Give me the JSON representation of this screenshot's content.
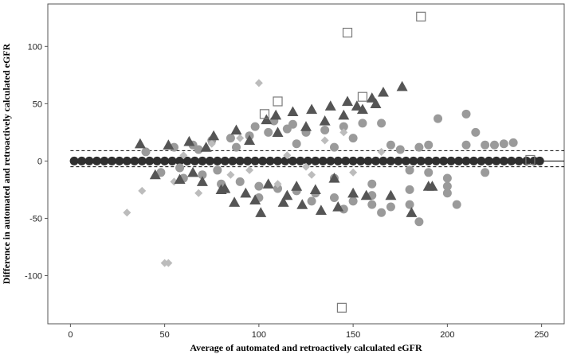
{
  "chart_data": {
    "type": "scatter",
    "title": "",
    "xlabel": "Average of automated and retroactively calculated eGFR",
    "ylabel": "Difference in automated and retroactively calculated eGFR",
    "xlim": [
      -12,
      262
    ],
    "ylim": [
      -142,
      137
    ],
    "xticks": [
      0,
      50,
      100,
      150,
      200,
      250
    ],
    "yticks": [
      100,
      50,
      0,
      -50,
      -100
    ],
    "xtick_labels": [
      "0",
      "50",
      "100",
      "150",
      "200",
      "250"
    ],
    "ytick_labels": [
      "100",
      "50",
      "0",
      "-50",
      "-100"
    ],
    "reference_lines": [
      {
        "style": "solid",
        "y": 0
      },
      {
        "style": "dashed",
        "y": 9
      },
      {
        "style": "dashed",
        "y": -5
      }
    ],
    "legend": "none",
    "grid": false,
    "series": [
      {
        "marker": "circle",
        "color": "#2f2f2f",
        "points": [
          [
            2,
            0
          ],
          [
            6,
            0
          ],
          [
            10,
            0
          ],
          [
            14,
            0
          ],
          [
            18,
            0
          ],
          [
            22,
            0
          ],
          [
            26,
            0
          ],
          [
            30,
            0
          ],
          [
            34,
            0
          ],
          [
            38,
            0
          ],
          [
            42,
            0
          ],
          [
            46,
            0
          ],
          [
            50,
            0
          ],
          [
            54,
            0
          ],
          [
            58,
            0
          ],
          [
            62,
            0
          ],
          [
            66,
            0
          ],
          [
            70,
            0
          ],
          [
            74,
            0
          ],
          [
            78,
            0
          ],
          [
            82,
            0
          ],
          [
            86,
            0
          ],
          [
            90,
            0
          ],
          [
            94,
            0
          ],
          [
            98,
            0
          ],
          [
            102,
            0
          ],
          [
            106,
            0
          ],
          [
            110,
            0
          ],
          [
            114,
            0
          ],
          [
            118,
            0
          ],
          [
            122,
            0
          ],
          [
            126,
            0
          ],
          [
            130,
            0
          ],
          [
            134,
            0
          ],
          [
            138,
            0
          ],
          [
            142,
            0
          ],
          [
            146,
            0
          ],
          [
            150,
            0
          ],
          [
            154,
            0
          ],
          [
            158,
            0
          ],
          [
            162,
            0
          ],
          [
            166,
            0
          ],
          [
            170,
            0
          ],
          [
            174,
            0
          ],
          [
            178,
            0
          ],
          [
            182,
            0
          ],
          [
            186,
            0
          ],
          [
            190,
            0
          ],
          [
            194,
            0
          ],
          [
            198,
            0
          ],
          [
            202,
            0
          ],
          [
            206,
            0
          ],
          [
            210,
            0
          ],
          [
            214,
            0
          ],
          [
            218,
            0
          ],
          [
            222,
            0
          ],
          [
            226,
            0
          ],
          [
            230,
            0
          ],
          [
            234,
            0
          ],
          [
            238,
            0
          ],
          [
            242,
            0
          ],
          [
            246,
            0
          ],
          [
            249,
            0
          ]
        ]
      },
      {
        "marker": "circle",
        "color": "#9a9a9a",
        "points": [
          [
            40,
            8
          ],
          [
            48,
            -10
          ],
          [
            55,
            12
          ],
          [
            60,
            -15
          ],
          [
            65,
            14
          ],
          [
            70,
            -12
          ],
          [
            75,
            18
          ],
          [
            80,
            -20
          ],
          [
            85,
            20
          ],
          [
            90,
            -18
          ],
          [
            95,
            22
          ],
          [
            100,
            -22
          ],
          [
            105,
            25
          ],
          [
            110,
            -24
          ],
          [
            115,
            28
          ],
          [
            120,
            -26
          ],
          [
            125,
            25
          ],
          [
            130,
            -28
          ],
          [
            135,
            27
          ],
          [
            140,
            -32
          ],
          [
            145,
            30
          ],
          [
            150,
            -35
          ],
          [
            155,
            33
          ],
          [
            160,
            -38
          ],
          [
            165,
            33
          ],
          [
            170,
            -40
          ],
          [
            175,
            10
          ],
          [
            180,
            -8
          ],
          [
            185,
            12
          ],
          [
            190,
            -10
          ],
          [
            195,
            37
          ],
          [
            200,
            -15
          ],
          [
            205,
            -38
          ],
          [
            210,
            41
          ],
          [
            215,
            25
          ],
          [
            220,
            14
          ],
          [
            225,
            14
          ],
          [
            230,
            15
          ],
          [
            235,
            16
          ],
          [
            185,
            -53
          ],
          [
            165,
            -45
          ],
          [
            145,
            -42
          ],
          [
            128,
            -35
          ],
          [
            118,
            32
          ],
          [
            108,
            35
          ],
          [
            98,
            30
          ],
          [
            150,
            20
          ],
          [
            160,
            -30
          ],
          [
            180,
            -38
          ],
          [
            200,
            -22
          ],
          [
            100,
            -32
          ],
          [
            88,
            12
          ],
          [
            78,
            -8
          ],
          [
            68,
            10
          ],
          [
            58,
            -6
          ],
          [
            120,
            15
          ],
          [
            140,
            12
          ],
          [
            170,
            14
          ],
          [
            190,
            14
          ],
          [
            210,
            14
          ],
          [
            140,
            -15
          ],
          [
            160,
            -20
          ],
          [
            180,
            -25
          ],
          [
            200,
            -28
          ],
          [
            220,
            -10
          ]
        ]
      },
      {
        "marker": "diamond",
        "color": "#bcbcbc",
        "points": [
          [
            100,
            68
          ],
          [
            30,
            -45
          ],
          [
            50,
            -89
          ],
          [
            52,
            -89
          ],
          [
            38,
            -26
          ],
          [
            68,
            -28
          ],
          [
            90,
            20
          ],
          [
            110,
            -20
          ],
          [
            125,
            -5
          ],
          [
            135,
            18
          ],
          [
            145,
            25
          ],
          [
            85,
            -12
          ],
          [
            60,
            5
          ],
          [
            75,
            15
          ],
          [
            55,
            -18
          ],
          [
            115,
            5
          ],
          [
            128,
            -12
          ],
          [
            150,
            -10
          ],
          [
            165,
            8
          ],
          [
            95,
            -8
          ]
        ]
      },
      {
        "marker": "triangle",
        "color": "#555555",
        "points": [
          [
            37,
            15
          ],
          [
            45,
            -12
          ],
          [
            52,
            14
          ],
          [
            58,
            -16
          ],
          [
            63,
            17
          ],
          [
            70,
            -18
          ],
          [
            76,
            22
          ],
          [
            82,
            -24
          ],
          [
            88,
            27
          ],
          [
            93,
            -28
          ],
          [
            98,
            -34
          ],
          [
            101,
            -45
          ],
          [
            104,
            36
          ],
          [
            109,
            40
          ],
          [
            113,
            -36
          ],
          [
            118,
            43
          ],
          [
            123,
            -38
          ],
          [
            128,
            45
          ],
          [
            133,
            -43
          ],
          [
            138,
            48
          ],
          [
            142,
            -40
          ],
          [
            147,
            52
          ],
          [
            152,
            48
          ],
          [
            157,
            -30
          ],
          [
            162,
            50
          ],
          [
            166,
            60
          ],
          [
            170,
            -30
          ],
          [
            176,
            65
          ],
          [
            181,
            -45
          ],
          [
            190,
            -22
          ],
          [
            192,
            -22
          ],
          [
            87,
            -36
          ],
          [
            80,
            -25
          ],
          [
            115,
            -30
          ],
          [
            125,
            30
          ],
          [
            135,
            35
          ],
          [
            145,
            40
          ],
          [
            155,
            45
          ],
          [
            160,
            55
          ],
          [
            65,
            -10
          ],
          [
            72,
            12
          ],
          [
            95,
            18
          ],
          [
            105,
            -20
          ],
          [
            120,
            -22
          ],
          [
            130,
            -25
          ],
          [
            150,
            -28
          ],
          [
            140,
            -15
          ],
          [
            110,
            25
          ]
        ]
      },
      {
        "marker": "square",
        "color": "#7a7a7a",
        "points": [
          [
            186,
            126
          ],
          [
            147,
            112
          ],
          [
            155,
            56
          ],
          [
            110,
            52
          ],
          [
            103,
            41
          ],
          [
            144,
            -128
          ],
          [
            244,
            1
          ]
        ]
      }
    ]
  }
}
